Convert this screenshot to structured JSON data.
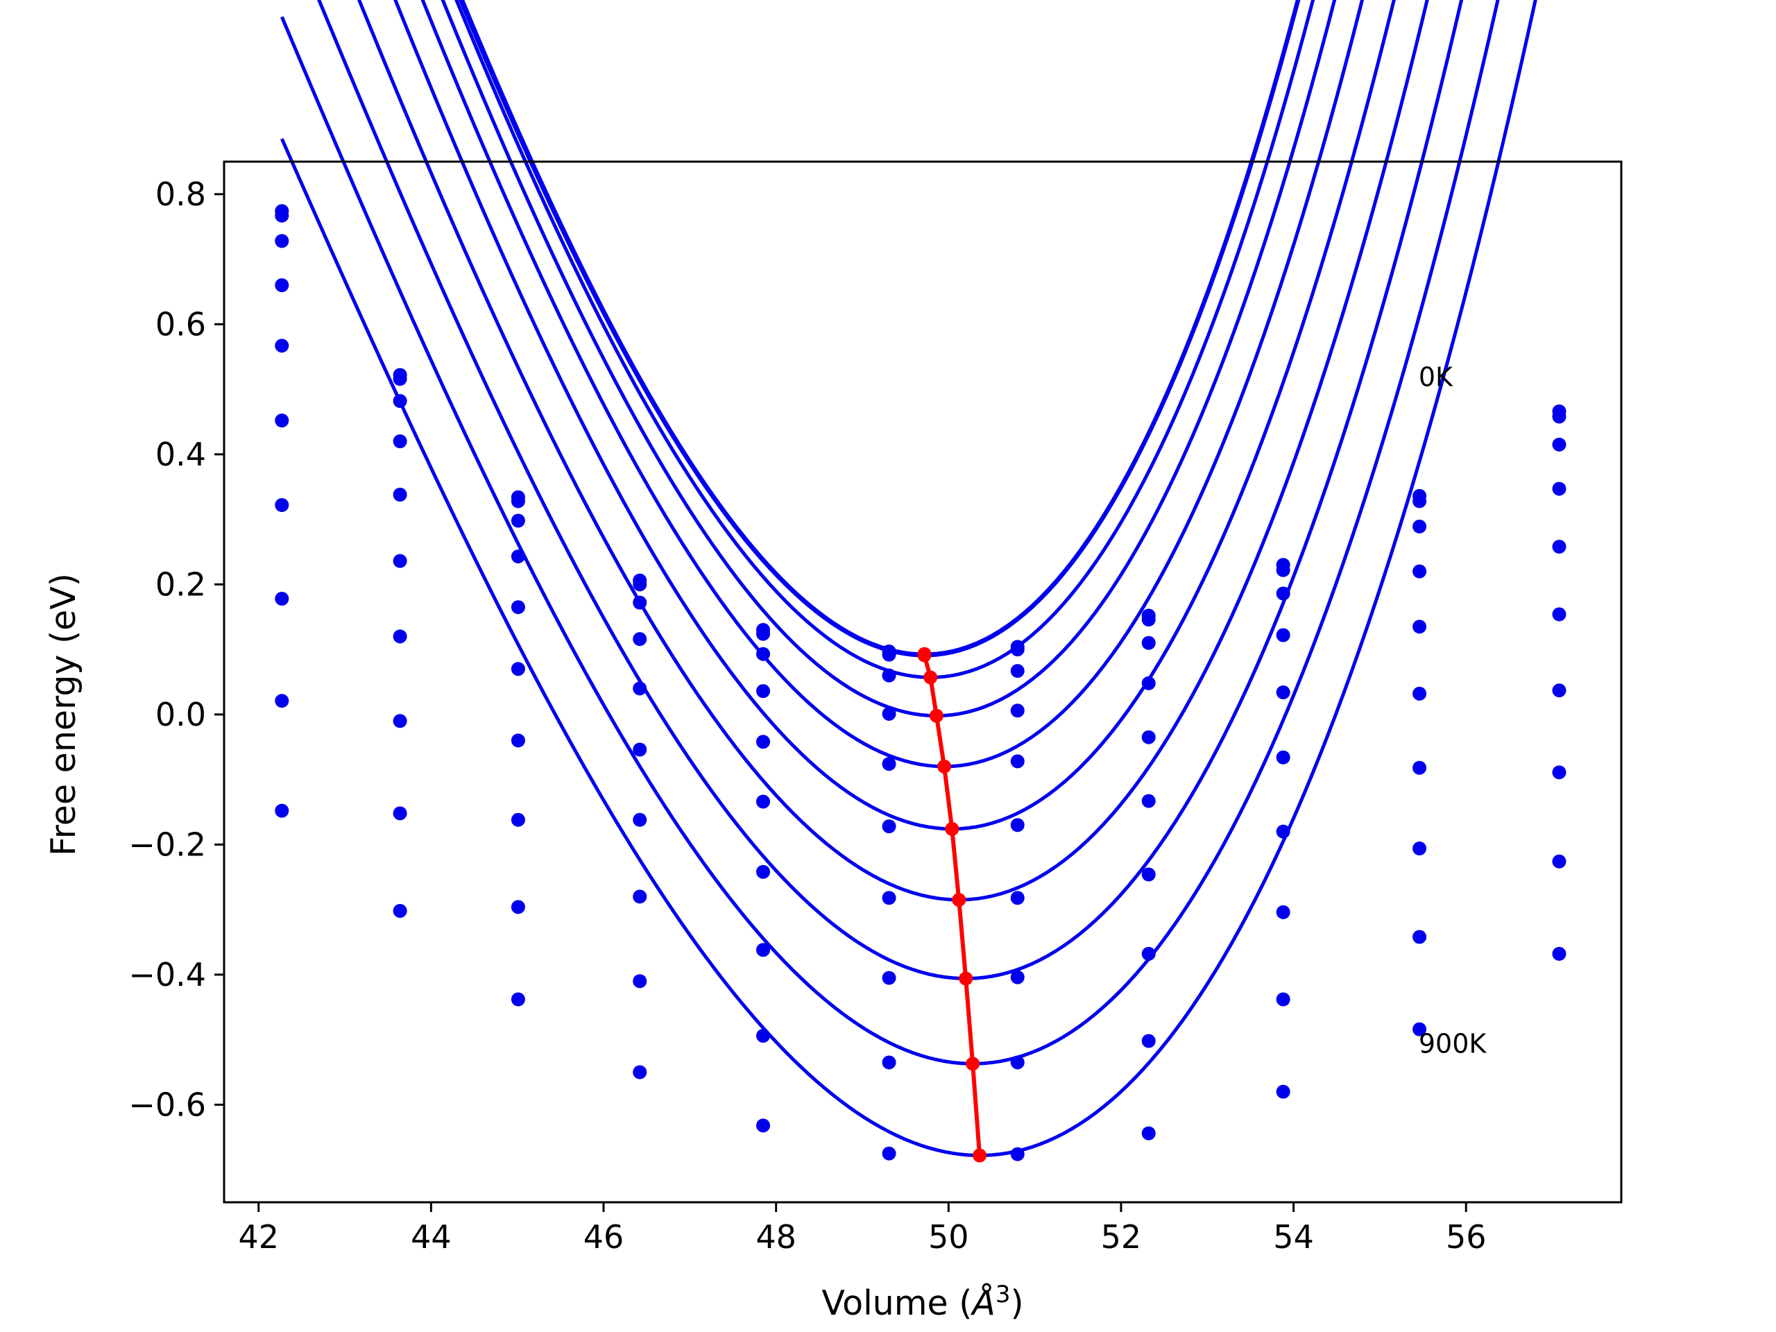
{
  "chart_data": {
    "type": "line",
    "title": "",
    "xlabel": "Volume (",
    "xlabel_math": "Å",
    "xlabel_sup": "3",
    "xlabel_close": ")",
    "ylabel": "Free energy (eV)",
    "xlim": [
      41.6,
      57.8
    ],
    "ylim": [
      -0.75,
      0.85
    ],
    "xticks": [
      42,
      44,
      46,
      48,
      50,
      52,
      54,
      56
    ],
    "yticks": [
      0.8,
      0.6,
      0.4,
      0.2,
      0.0,
      -0.2,
      -0.4,
      -0.6
    ],
    "ytick_labels": [
      "0.8",
      "0.6",
      "0.4",
      "0.2",
      "0.0",
      "−0.2",
      "−0.4",
      "−0.6"
    ],
    "grid": false,
    "volumes": [
      42.27,
      43.64,
      45.01,
      46.42,
      47.85,
      49.31,
      50.8,
      52.32,
      53.88,
      55.46,
      57.08
    ],
    "series": [
      {
        "fit": [
          0.0927,
          49.72,
          0.0454,
          0.00193
        ],
        "points": [
          0.774,
          0.522,
          0.334,
          0.206,
          0.13,
          0.097,
          0.104,
          0.152,
          0.23,
          0.336,
          0.466
        ]
      },
      {
        "fit": [
          0.0905,
          49.72,
          0.0452,
          0.00193
        ],
        "points": [
          0.767,
          0.516,
          0.328,
          0.2,
          0.124,
          0.092,
          0.1,
          0.146,
          0.222,
          0.328,
          0.458
        ]
      },
      {
        "fit": [
          0.057,
          49.79,
          0.0447,
          0.00186
        ],
        "points": [
          0.728,
          0.482,
          0.298,
          0.172,
          0.093,
          0.06,
          0.067,
          0.11,
          0.186,
          0.289,
          0.415
        ]
      },
      {
        "fit": [
          -0.002,
          49.86,
          0.0436,
          0.00175
        ],
        "points": [
          0.66,
          0.42,
          0.243,
          0.116,
          0.036,
          0.001,
          0.006,
          0.048,
          0.122,
          0.22,
          0.347
        ]
      },
      {
        "fit": [
          -0.08,
          49.95,
          0.0422,
          0.00165
        ],
        "points": [
          0.567,
          0.338,
          0.165,
          0.04,
          -0.042,
          -0.076,
          -0.072,
          -0.035,
          0.034,
          0.135,
          0.258
        ]
      },
      {
        "fit": [
          -0.176,
          50.04,
          0.0406,
          0.00155
        ],
        "points": [
          0.452,
          0.236,
          0.07,
          -0.054,
          -0.134,
          -0.172,
          -0.17,
          -0.133,
          -0.066,
          0.032,
          0.154
        ]
      },
      {
        "fit": [
          -0.285,
          50.12,
          0.0389,
          0.00148
        ],
        "points": [
          0.322,
          0.12,
          -0.04,
          -0.162,
          -0.242,
          -0.282,
          -0.282,
          -0.246,
          -0.18,
          -0.082,
          0.037
        ]
      },
      {
        "fit": [
          -0.406,
          50.2,
          0.0374,
          0.00142
        ],
        "points": [
          0.178,
          -0.01,
          -0.162,
          -0.28,
          -0.362,
          -0.405,
          -0.404,
          -0.368,
          -0.304,
          -0.206,
          -0.089
        ]
      },
      {
        "fit": [
          -0.537,
          50.28,
          0.0359,
          0.00135
        ],
        "points": [
          0.021,
          -0.152,
          -0.296,
          -0.41,
          -0.494,
          -0.535,
          -0.535,
          -0.502,
          -0.438,
          -0.342,
          -0.226
        ]
      },
      {
        "fit": [
          -0.678,
          50.36,
          0.0344,
          0.0013
        ],
        "points": [
          -0.148,
          -0.302,
          -0.438,
          -0.55,
          -0.632,
          -0.675,
          -0.676,
          -0.644,
          -0.58,
          -0.484,
          -0.368
        ]
      }
    ],
    "minima": {
      "x": [
        49.72,
        49.72,
        49.79,
        49.86,
        49.95,
        50.04,
        50.12,
        50.2,
        50.28,
        50.36
      ],
      "y": [
        0.093,
        0.091,
        0.057,
        -0.002,
        -0.08,
        -0.176,
        -0.285,
        -0.406,
        -0.537,
        -0.678
      ]
    },
    "annotations": [
      {
        "text": "0K",
        "x": 55.45,
        "y": 0.52
      },
      {
        "text": "900K",
        "x": 55.45,
        "y": -0.505
      }
    ],
    "colors": {
      "curves": "#0000ee",
      "minima": "#ff0000",
      "axes": "#000000"
    }
  }
}
